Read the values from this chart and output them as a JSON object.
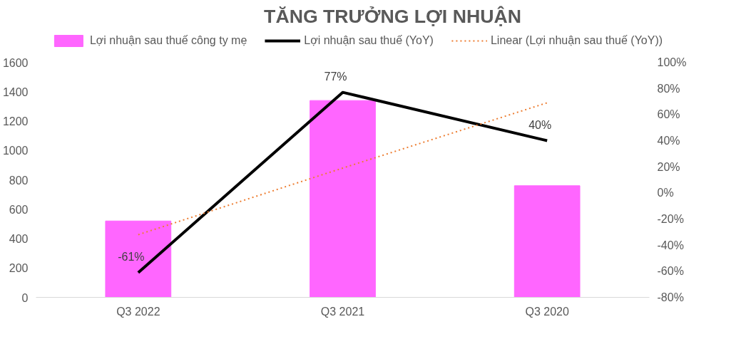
{
  "chart_data": {
    "type": "bar",
    "title": "TĂNG TRƯỞNG LỢI NHUẬN",
    "categories": [
      "Q3 2022",
      "Q3 2021",
      "Q3 2020"
    ],
    "series": [
      {
        "name": "Lợi nhuận sau thuế công ty mẹ",
        "color": "#ff66ff",
        "values": [
          520,
          1340,
          760
        ]
      },
      {
        "name": "Lợi nhuận sau thuế (YoY)",
        "type": "line",
        "axis": "y2",
        "color": "#000000",
        "line_style": "solid",
        "values": [
          -61,
          77,
          40
        ],
        "value_labels": [
          "-61%",
          "77%",
          "40%"
        ]
      },
      {
        "name": "Linear (Lợi nhuận sau thuế (YoY))",
        "type": "line",
        "axis": "y2",
        "color": "#ed7d31",
        "line_style": "dotted",
        "values": [
          -32,
          19,
          69
        ]
      }
    ],
    "ylim": [
      0,
      1600
    ],
    "yticks": [
      0,
      200,
      400,
      600,
      800,
      1000,
      1200,
      1400,
      1600
    ],
    "y2lim": [
      -80,
      100
    ],
    "y2ticks": [
      {
        "value": -80,
        "label": "-80%"
      },
      {
        "value": -60,
        "label": "-60%"
      },
      {
        "value": -40,
        "label": "-40%"
      },
      {
        "value": -20,
        "label": "-20%"
      },
      {
        "value": 0,
        "label": "0%"
      },
      {
        "value": 20,
        "label": "20%"
      },
      {
        "value": 40,
        "label": "40%"
      },
      {
        "value": 60,
        "label": "60%"
      },
      {
        "value": 80,
        "label": "80%"
      },
      {
        "value": 100,
        "label": "100%"
      }
    ],
    "grid": false,
    "legend": "top",
    "marker": "none"
  }
}
